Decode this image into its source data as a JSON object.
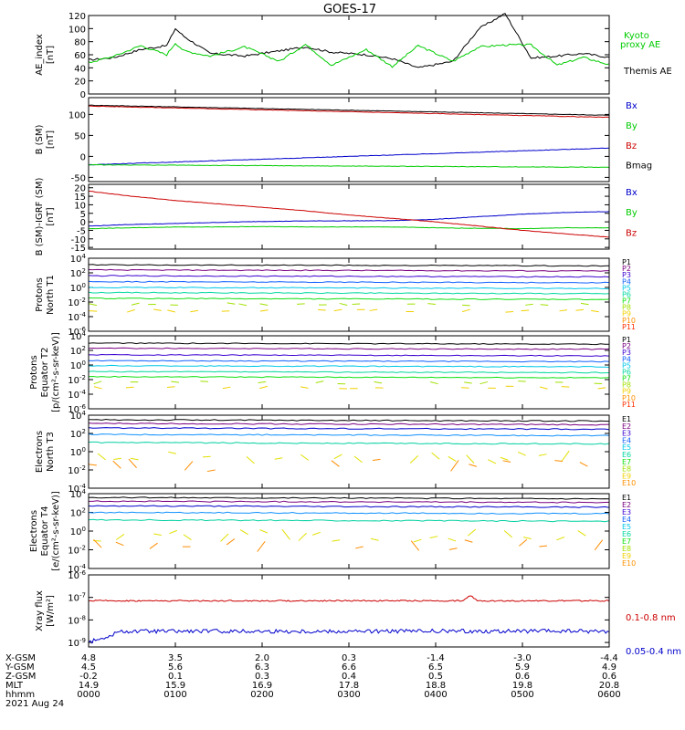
{
  "title": "GOES-17",
  "x_axis": {
    "row_labels": [
      "X-GSM",
      "Y-GSM",
      "Z-GSM",
      "MLT",
      "hhmm",
      "2021 Aug 24"
    ],
    "columns": [
      [
        "4.8",
        "4.5",
        "-0.2",
        "14.9",
        "0000"
      ],
      [
        "3.5",
        "5.6",
        "0.1",
        "15.9",
        "0100"
      ],
      [
        "2.0",
        "6.3",
        "0.3",
        "16.9",
        "0200"
      ],
      [
        "0.3",
        "6.6",
        "0.4",
        "17.8",
        "0300"
      ],
      [
        "-1.4",
        "6.5",
        "0.5",
        "18.8",
        "0400"
      ],
      [
        "-3.0",
        "5.9",
        "0.6",
        "19.8",
        "0500"
      ],
      [
        "-4.4",
        "4.9",
        "0.6",
        "20.8",
        "0600"
      ]
    ]
  },
  "chart_data": [
    {
      "type": "line",
      "ylabel": "AE_index\n[nT]",
      "ylim": [
        0,
        120
      ],
      "yticks": [
        "0",
        "20",
        "40",
        "60",
        "80",
        "100",
        "120"
      ],
      "legend": [
        {
          "text": "Kyoto\nproxy AE",
          "color": "#00cc00"
        },
        {
          "text": "Themis AE",
          "color": "#000000"
        }
      ],
      "x_hours": [
        0,
        0.3,
        0.6,
        0.9,
        1.0,
        1.1,
        1.4,
        1.8,
        2.2,
        2.5,
        2.8,
        3.2,
        3.5,
        3.8,
        4.2,
        4.5,
        4.8,
        5.1,
        5.4,
        5.7,
        6.0
      ],
      "series": [
        {
          "name": "Themis AE",
          "color": "#000000",
          "values": [
            52,
            56,
            68,
            74,
            100,
            88,
            62,
            58,
            66,
            72,
            64,
            60,
            54,
            40,
            50,
            100,
            123,
            55,
            58,
            62,
            56
          ]
        },
        {
          "name": "Kyoto proxy AE",
          "color": "#00cc00",
          "values": [
            48,
            58,
            74,
            60,
            78,
            66,
            58,
            72,
            50,
            76,
            44,
            68,
            42,
            74,
            50,
            72,
            75,
            75,
            44,
            56,
            45
          ]
        }
      ]
    },
    {
      "type": "line",
      "ylabel": "B (SM)\n[nT]",
      "ylim": [
        -60,
        140
      ],
      "yticks": [
        "-50",
        "0",
        "50",
        "100"
      ],
      "legend": [
        {
          "text": "Bx",
          "color": "#0000cc"
        },
        {
          "text": "By",
          "color": "#00cc00"
        },
        {
          "text": "Bz",
          "color": "#cc0000"
        },
        {
          "text": "Bmag",
          "color": "#000000"
        }
      ],
      "x_hours": [
        0,
        6
      ],
      "series": [
        {
          "name": "Bmag",
          "color": "#000000",
          "values": [
            122,
            98
          ]
        },
        {
          "name": "Bz",
          "color": "#cc0000",
          "values": [
            120,
            93
          ]
        },
        {
          "name": "Bx",
          "color": "#0000cc",
          "values": [
            -20,
            20
          ]
        },
        {
          "name": "By",
          "color": "#00cc00",
          "values": [
            -20,
            -26
          ]
        }
      ]
    },
    {
      "type": "line",
      "ylabel": "B (SM)-IGRF (SM)\n[nT]",
      "ylim": [
        -16,
        22
      ],
      "yticks": [
        "-15",
        "-10",
        "-5",
        "0",
        "5",
        "10",
        "15",
        "20"
      ],
      "legend": [
        {
          "text": "Bx",
          "color": "#0000cc"
        },
        {
          "text": "By",
          "color": "#00cc00"
        },
        {
          "text": "Bz",
          "color": "#cc0000"
        }
      ],
      "x_hours": [
        0,
        0.5,
        1,
        1.5,
        2,
        2.5,
        3,
        3.5,
        4,
        4.5,
        5,
        5.5,
        6
      ],
      "series": [
        {
          "name": "Bx",
          "color": "#0000cc",
          "values": [
            -2.5,
            -1.5,
            -1,
            -0.3,
            0.2,
            0.5,
            0.6,
            0.7,
            1.5,
            3,
            4.5,
            5.5,
            6
          ]
        },
        {
          "name": "By",
          "color": "#00cc00",
          "values": [
            -4,
            -3.5,
            -3,
            -3,
            -2.8,
            -3,
            -3,
            -3,
            -3.5,
            -3.8,
            -4,
            -3.5,
            -3.5
          ]
        },
        {
          "name": "Bz",
          "color": "#cc0000",
          "values": [
            18,
            15,
            12.5,
            10.5,
            8.5,
            6.5,
            4,
            2,
            0,
            -2.5,
            -5,
            -7,
            -9
          ]
        }
      ]
    },
    {
      "type": "line",
      "ylabel": "Protons\nNorth T1",
      "ylog": true,
      "ylim": [
        -6,
        4
      ],
      "yticks": [
        "10^4",
        "10^2",
        "10^0",
        "10^-2",
        "10^-4",
        "10^-6"
      ],
      "legend": [
        "P1",
        "P2",
        "P3",
        "P4",
        "P5",
        "P6",
        "P7",
        "P8",
        "P9",
        "P10",
        "P11"
      ],
      "levels_log10": [
        3.1,
        2.4,
        1.6,
        0.8,
        0.0,
        -0.7,
        -1.5,
        -2.3,
        -3.2
      ]
    },
    {
      "type": "line",
      "ylabel": "Protons\nEquator T2\n[p/(cm²-s-sr-keV)]",
      "ylog": true,
      "ylim": [
        -6,
        4
      ],
      "yticks": [
        "10^4",
        "10^2",
        "10^0",
        "10^-2",
        "10^-4",
        "10^-6"
      ],
      "legend": [
        "P1",
        "P2",
        "P3",
        "P4",
        "P5",
        "P6",
        "P7",
        "P8",
        "P9",
        "P10",
        "P11"
      ],
      "levels_log10": [
        3.0,
        2.3,
        1.4,
        0.6,
        -0.1,
        -0.9,
        -1.6,
        -2.4,
        -3.1
      ]
    },
    {
      "type": "line",
      "ylabel": "Electrons\nNorth T3",
      "ylog": true,
      "ylim": [
        -4,
        4
      ],
      "yticks": [
        "10^4",
        "10^2",
        "10^0",
        "10^-2",
        "10^-4"
      ],
      "legend": [
        "E1",
        "E2",
        "E3",
        "E4",
        "E5",
        "E6",
        "E7",
        "E8",
        "E9",
        "E10"
      ],
      "levels_log10": [
        3.5,
        3.1,
        2.6,
        1.9,
        1.0,
        -0.6,
        -1.5
      ]
    },
    {
      "type": "line",
      "ylabel": "Electrons\nEquator T4\n[e/(cm²-s-sr-keV)]",
      "ylog": true,
      "ylim": [
        -4,
        4
      ],
      "yticks": [
        "10^4",
        "10^2",
        "10^0",
        "10^-2",
        "10^-4"
      ],
      "legend": [
        "E1",
        "E2",
        "E3",
        "E4",
        "E5",
        "E6",
        "E7",
        "E8",
        "E9",
        "E10"
      ],
      "levels_log10": [
        3.6,
        3.2,
        2.7,
        2.0,
        1.2,
        -0.5,
        -1.5
      ]
    },
    {
      "type": "line",
      "ylabel": "Xray flux\n[W/m²]",
      "ylog": true,
      "ylim": [
        -9.2,
        -6
      ],
      "yticks": [
        "10^-6",
        "10^-7",
        "10^-8",
        "10^-9"
      ],
      "legend": [
        {
          "text": "0.1-0.8 nm",
          "color": "#cc0000"
        },
        {
          "text": "0.05-0.4 nm",
          "color": "#0000cc"
        }
      ],
      "series": [
        {
          "name": "0.1-0.8 nm",
          "color": "#cc0000",
          "level_log10": -7.15,
          "peak_hour": 4.4,
          "peak_log10": -6.9
        },
        {
          "name": "0.05-0.4 nm",
          "color": "#0000cc",
          "level_log10": -8.5,
          "start_log10": -9.0
        }
      ]
    }
  ],
  "colors": {
    "P": [
      "#000000",
      "#7a0080",
      "#3a00d0",
      "#1060ff",
      "#00c8e8",
      "#00d8a0",
      "#10e010",
      "#a0e000",
      "#f0d000",
      "#ff9000",
      "#ff3000",
      "#d00000"
    ],
    "E": [
      "#000000",
      "#7a0080",
      "#3a00d0",
      "#1060ff",
      "#00c8e8",
      "#00d8a0",
      "#10e010",
      "#a0e000",
      "#f0d000",
      "#ff9000",
      "#ff3000",
      "#d00000"
    ],
    "ELines": [
      "#000000",
      "#7a0080",
      "#0000cc",
      "#1090ff",
      "#00d0a0",
      "#e0e000",
      "#ff8c00",
      "#cc0000"
    ]
  }
}
